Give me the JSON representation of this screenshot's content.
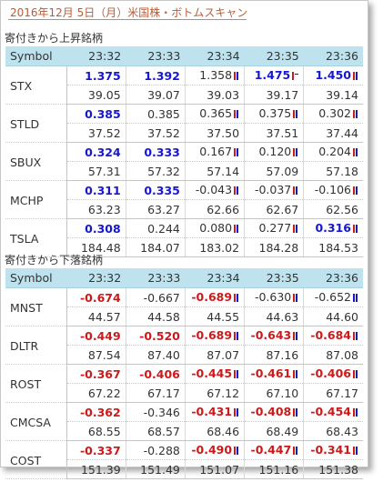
{
  "page": {
    "title": "2016年12月 5日（月）米国株・ボトムスキャン"
  },
  "colors": {
    "up": "#1717d0",
    "down": "#cc1a1a",
    "header_bg": "#bfe3ee",
    "title": "#b85c38"
  },
  "sections": [
    {
      "title": "寄付きから上昇銘柄",
      "symbol_header": "Symbol",
      "times": [
        "23:32",
        "23:33",
        "23:34",
        "23:35",
        "23:36"
      ],
      "rows": [
        {
          "symbol": "STX",
          "changes": [
            {
              "value": "1.375",
              "color": "up"
            },
            {
              "value": "1.392",
              "color": "up"
            },
            {
              "value": "1.358",
              "color": "flat",
              "marker": "red-blue-icon"
            },
            {
              "value": "1.475",
              "color": "up",
              "marker": "red-dash-icon"
            },
            {
              "value": "1.450",
              "color": "up",
              "marker": "red-blue-icon"
            }
          ],
          "prices": [
            "39.05",
            "39.07",
            "39.03",
            "39.17",
            "39.14"
          ]
        },
        {
          "symbol": "STLD",
          "changes": [
            {
              "value": "0.385",
              "color": "up"
            },
            {
              "value": "0.385",
              "color": "flat"
            },
            {
              "value": "0.365",
              "color": "flat",
              "marker": "red-blue-icon"
            },
            {
              "value": "0.375",
              "color": "flat",
              "marker": "red-blue-icon"
            },
            {
              "value": "0.302",
              "color": "flat",
              "marker": "red-blue-icon"
            }
          ],
          "prices": [
            "37.52",
            "37.52",
            "37.50",
            "37.51",
            "37.44"
          ]
        },
        {
          "symbol": "SBUX",
          "changes": [
            {
              "value": "0.324",
              "color": "up"
            },
            {
              "value": "0.333",
              "color": "up"
            },
            {
              "value": "0.167",
              "color": "flat",
              "marker": "red-blue-icon"
            },
            {
              "value": "0.120",
              "color": "flat",
              "marker": "red-blue-icon"
            },
            {
              "value": "0.204",
              "color": "flat",
              "marker": "red-blue-icon"
            }
          ],
          "prices": [
            "57.31",
            "57.32",
            "57.14",
            "57.09",
            "57.18"
          ]
        },
        {
          "symbol": "MCHP",
          "changes": [
            {
              "value": "0.311",
              "color": "up"
            },
            {
              "value": "0.335",
              "color": "up"
            },
            {
              "value": "-0.043",
              "color": "flat",
              "marker": "red-blue-icon"
            },
            {
              "value": "-0.037",
              "color": "flat",
              "marker": "red-blue-icon"
            },
            {
              "value": "-0.106",
              "color": "flat",
              "marker": "red-blue-icon"
            }
          ],
          "prices": [
            "63.23",
            "63.27",
            "62.66",
            "62.67",
            "62.56"
          ]
        },
        {
          "symbol": "TSLA",
          "changes": [
            {
              "value": "0.308",
              "color": "up"
            },
            {
              "value": "0.244",
              "color": "flat"
            },
            {
              "value": "0.080",
              "color": "flat",
              "marker": "red-blue-icon"
            },
            {
              "value": "0.277",
              "color": "flat",
              "marker": "red-blue-icon"
            },
            {
              "value": "0.316",
              "color": "up",
              "marker": "red-blue-icon"
            }
          ],
          "prices": [
            "184.48",
            "184.07",
            "183.02",
            "184.28",
            "184.53"
          ]
        }
      ]
    },
    {
      "title": "寄付きから下落銘柄",
      "symbol_header": "Symbol",
      "times": [
        "23:32",
        "23:33",
        "23:34",
        "23:35",
        "23:36"
      ],
      "rows": [
        {
          "symbol": "MNST",
          "changes": [
            {
              "value": "-0.674",
              "color": "down"
            },
            {
              "value": "-0.667",
              "color": "flat"
            },
            {
              "value": "-0.689",
              "color": "down",
              "marker": "red-blue-icon"
            },
            {
              "value": "-0.630",
              "color": "flat",
              "marker": "red-blue-icon"
            },
            {
              "value": "-0.652",
              "color": "flat",
              "marker": "blue-blue-icon"
            }
          ],
          "prices": [
            "44.57",
            "44.58",
            "44.55",
            "44.63",
            "44.60"
          ]
        },
        {
          "symbol": "DLTR",
          "changes": [
            {
              "value": "-0.449",
              "color": "down"
            },
            {
              "value": "-0.520",
              "color": "down"
            },
            {
              "value": "-0.689",
              "color": "down",
              "marker": "red-blue-icon"
            },
            {
              "value": "-0.643",
              "color": "down",
              "marker": "red-blue-icon"
            },
            {
              "value": "-0.684",
              "color": "down",
              "marker": "red-blue-icon"
            }
          ],
          "prices": [
            "87.54",
            "87.40",
            "87.07",
            "87.16",
            "87.08"
          ]
        },
        {
          "symbol": "ROST",
          "changes": [
            {
              "value": "-0.367",
              "color": "down"
            },
            {
              "value": "-0.406",
              "color": "down"
            },
            {
              "value": "-0.445",
              "color": "down",
              "marker": "red-blue-icon"
            },
            {
              "value": "-0.461",
              "color": "down",
              "marker": "red-blue-icon"
            },
            {
              "value": "-0.406",
              "color": "down",
              "marker": "red-blue-icon"
            }
          ],
          "prices": [
            "67.22",
            "67.17",
            "67.12",
            "67.10",
            "67.17"
          ]
        },
        {
          "symbol": "CMCSA",
          "changes": [
            {
              "value": "-0.362",
              "color": "down"
            },
            {
              "value": "-0.346",
              "color": "flat"
            },
            {
              "value": "-0.431",
              "color": "down",
              "marker": "red-blue-icon"
            },
            {
              "value": "-0.408",
              "color": "down",
              "marker": "red-blue-icon"
            },
            {
              "value": "-0.454",
              "color": "down",
              "marker": "red-blue-icon"
            }
          ],
          "prices": [
            "68.55",
            "68.57",
            "68.46",
            "68.49",
            "68.43"
          ]
        },
        {
          "symbol": "COST",
          "changes": [
            {
              "value": "-0.337",
              "color": "down"
            },
            {
              "value": "-0.288",
              "color": "flat"
            },
            {
              "value": "-0.490",
              "color": "down",
              "marker": "red-blue-icon"
            },
            {
              "value": "-0.447",
              "color": "down",
              "marker": "red-blue-icon"
            },
            {
              "value": "-0.341",
              "color": "down",
              "marker": "red-blue-icon"
            }
          ],
          "prices": [
            "151.39",
            "151.49",
            "151.07",
            "151.16",
            "151.38"
          ]
        }
      ]
    }
  ]
}
